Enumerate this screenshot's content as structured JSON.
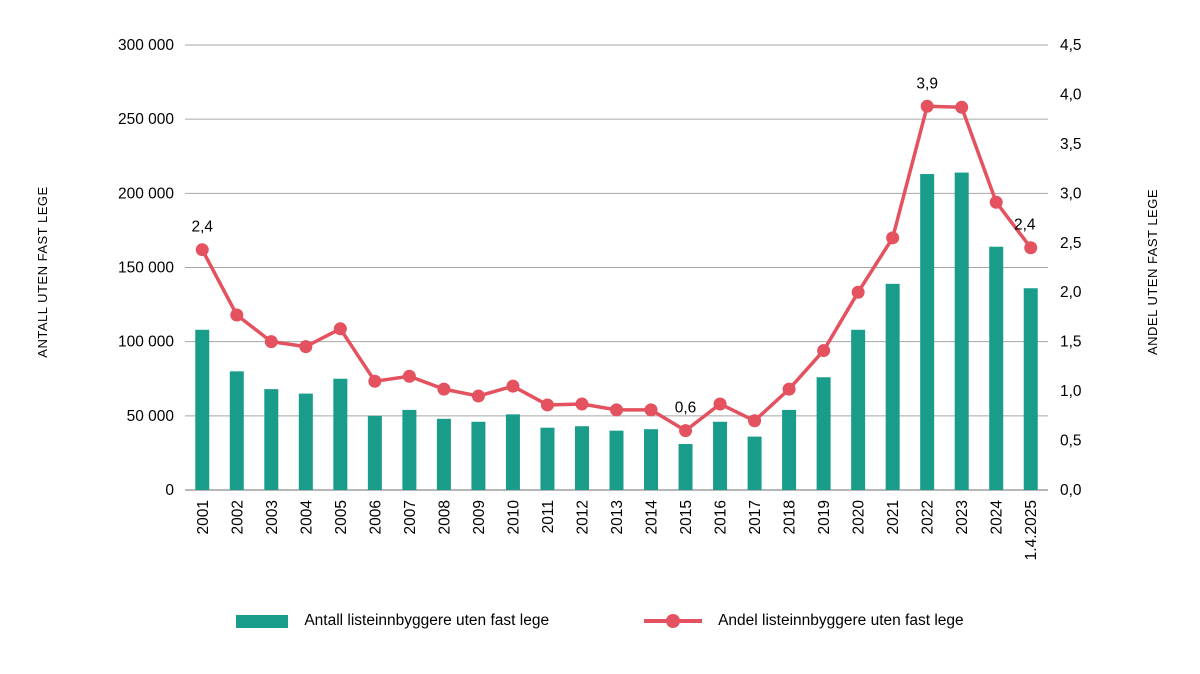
{
  "legend": {
    "bars_label": "Antall listeinnbyggere uten fast lege",
    "line_label": "Andel listeinnbyggere uten fast lege"
  },
  "colors": {
    "bar": "#1A9C8B",
    "line": "#E4515F",
    "grid": "#A6A6A6",
    "axis": "#8C8C8C",
    "text": "#000000"
  },
  "chart_data": {
    "type": "bar+line combo",
    "categories": [
      "2001",
      "2002",
      "2003",
      "2004",
      "2005",
      "2006",
      "2007",
      "2008",
      "2009",
      "2010",
      "2011",
      "2012",
      "2013",
      "2014",
      "2015",
      "2016",
      "2017",
      "2018",
      "2019",
      "2020",
      "2021",
      "2022",
      "2023",
      "2024",
      "1.4.2025"
    ],
    "series": [
      {
        "name": "Antall listeinnbyggere uten fast lege",
        "type": "bar",
        "axis": "left",
        "values": [
          108000,
          80000,
          68000,
          65000,
          75000,
          50000,
          54000,
          48000,
          46000,
          51000,
          42000,
          43000,
          40000,
          41000,
          31000,
          46000,
          36000,
          54000,
          76000,
          108000,
          139000,
          213000,
          214000,
          164000,
          136000
        ]
      },
      {
        "name": "Andel listeinnbyggere uten fast lege",
        "type": "line",
        "axis": "right",
        "values": [
          2.43,
          1.77,
          1.5,
          1.45,
          1.63,
          1.1,
          1.15,
          1.02,
          0.95,
          1.05,
          0.86,
          0.87,
          0.81,
          0.81,
          0.6,
          0.87,
          0.7,
          1.02,
          1.41,
          2.0,
          2.55,
          3.88,
          3.87,
          2.91,
          2.45
        ]
      }
    ],
    "left_axis": {
      "title": "ANTALL UTEN FAST LEGE",
      "min": 0,
      "max": 300000,
      "ticks": [
        {
          "value": 0,
          "label": "0"
        },
        {
          "value": 50000,
          "label": "50 000"
        },
        {
          "value": 100000,
          "label": "100 000"
        },
        {
          "value": 150000,
          "label": "150 000"
        },
        {
          "value": 200000,
          "label": "200 000"
        },
        {
          "value": 250000,
          "label": "250 000"
        },
        {
          "value": 300000,
          "label": "300 000"
        }
      ]
    },
    "right_axis": {
      "title": "ANDEL UTEN FAST LEGE",
      "min": 0,
      "max": 4.5,
      "ticks": [
        {
          "value": 0,
          "label": "0,0"
        },
        {
          "value": 0.5,
          "label": "0,5"
        },
        {
          "value": 1,
          "label": "1,0"
        },
        {
          "value": 1.5,
          "label": "1,5"
        },
        {
          "value": 2,
          "label": "2,0"
        },
        {
          "value": 2.5,
          "label": "2,5"
        },
        {
          "value": 3,
          "label": "3,0"
        },
        {
          "value": 3.5,
          "label": "3,5"
        },
        {
          "value": 4,
          "label": "4,0"
        },
        {
          "value": 4.5,
          "label": "4,5"
        }
      ]
    },
    "annotations": [
      {
        "index": 0,
        "text": "2,4"
      },
      {
        "index": 14,
        "text": "0,6"
      },
      {
        "index": 21,
        "text": "3,9"
      },
      {
        "index": 24,
        "text": "2,4",
        "dx": -6
      }
    ],
    "grid": true,
    "legend_position": "bottom"
  }
}
